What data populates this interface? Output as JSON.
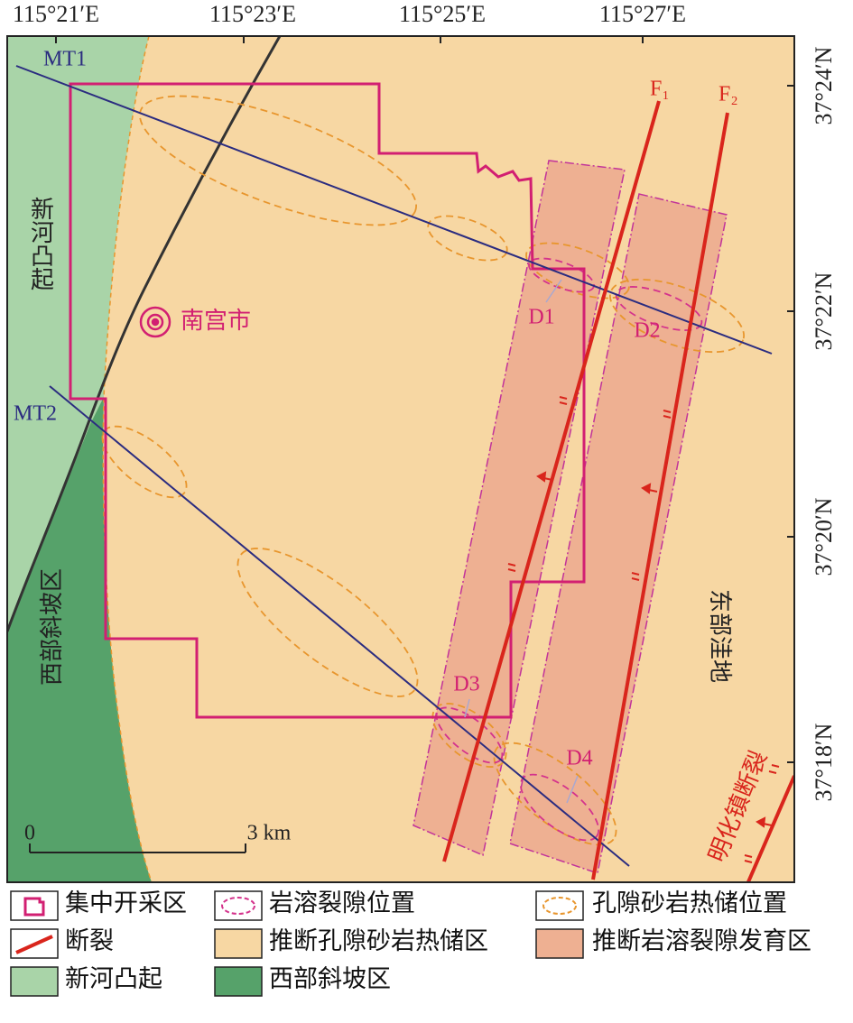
{
  "map": {
    "longitude_labels": [
      "115°21′E",
      "115°23′E",
      "115°25′E",
      "115°27′E"
    ],
    "latitude_labels": [
      "37°24′N",
      "37°22′N",
      "37°20′N",
      "37°18′N"
    ],
    "lines": {
      "mt1": "MT1",
      "mt2": "MT2"
    },
    "faults": {
      "f1": "F₁",
      "f2": "F₂",
      "minghua": "明化镇断裂"
    },
    "regions": {
      "xinhe": "新河凸起",
      "west_slope": "西部斜坡区",
      "east_depression": "东部洼地"
    },
    "city": "南宫市",
    "karst_points": [
      "D1",
      "D2",
      "D3",
      "D4"
    ],
    "scale": {
      "start": "0",
      "end": "3 km"
    },
    "legend": [
      "集中开采区",
      "岩溶裂隙位置",
      "孔隙砂岩热储位置",
      "断裂",
      "推断孔隙砂岩热储区",
      "推断岩溶裂隙发育区",
      "新河凸起",
      "西部斜坡区"
    ]
  }
}
